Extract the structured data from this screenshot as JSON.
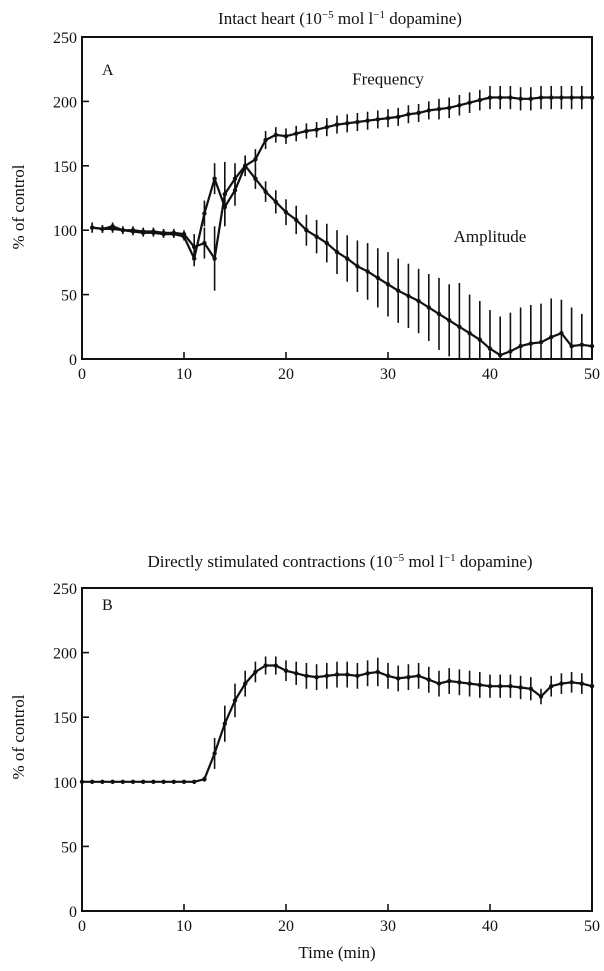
{
  "chart_data": [
    {
      "type": "line",
      "panel": "A",
      "title_main": "Intact heart (10",
      "title_sup1": "−5",
      "title_mid": " mol l",
      "title_sup2": "−1",
      "title_end": " dopamine)",
      "xlabel": "",
      "ylabel": "% of control",
      "xlim": [
        0,
        50
      ],
      "ylim": [
        0,
        250
      ],
      "xticks": [
        0,
        10,
        20,
        30,
        40,
        50
      ],
      "yticks": [
        0,
        50,
        100,
        150,
        200,
        250
      ],
      "annotations": [
        {
          "text": "Frequency",
          "x": 30,
          "y": 213
        },
        {
          "text": "Amplitude",
          "x": 40,
          "y": 91
        }
      ],
      "series": [
        {
          "name": "Frequency",
          "x": [
            1,
            2,
            3,
            4,
            5,
            6,
            7,
            8,
            9,
            10,
            11,
            12,
            13,
            14,
            15,
            16,
            17,
            18,
            19,
            20,
            21,
            22,
            23,
            24,
            25,
            26,
            27,
            28,
            29,
            30,
            31,
            32,
            33,
            34,
            35,
            36,
            37,
            38,
            39,
            40,
            41,
            42,
            43,
            44,
            45,
            46,
            47,
            48,
            49,
            50
          ],
          "y": [
            102,
            101,
            101,
            100,
            99,
            98,
            98,
            97,
            97,
            95,
            78,
            113,
            140,
            118,
            131,
            150,
            155,
            170,
            174,
            173,
            175,
            177,
            178,
            180,
            182,
            183,
            184,
            185,
            186,
            187,
            188,
            190,
            191,
            193,
            194,
            195,
            197,
            199,
            201,
            203,
            203,
            203,
            202,
            202,
            203,
            203,
            203,
            203,
            203,
            203
          ],
          "err": [
            4,
            3,
            3,
            3,
            3,
            3,
            3,
            3,
            3,
            3,
            6,
            10,
            12,
            14,
            12,
            8,
            8,
            7,
            6,
            6,
            6,
            6,
            6,
            7,
            7,
            7,
            7,
            7,
            7,
            7,
            7,
            7,
            7,
            7,
            8,
            8,
            8,
            8,
            8,
            9,
            9,
            9,
            9,
            9,
            9,
            9,
            9,
            9,
            9,
            9
          ]
        },
        {
          "name": "Amplitude",
          "x": [
            1,
            2,
            3,
            4,
            5,
            6,
            7,
            8,
            9,
            10,
            11,
            12,
            13,
            14,
            15,
            16,
            17,
            18,
            19,
            20,
            21,
            22,
            23,
            24,
            25,
            26,
            27,
            28,
            29,
            30,
            31,
            32,
            33,
            34,
            35,
            36,
            37,
            38,
            39,
            40,
            41,
            42,
            43,
            44,
            45,
            46,
            47,
            48,
            49,
            50
          ],
          "y": [
            102,
            101,
            103,
            100,
            100,
            99,
            99,
            98,
            98,
            97,
            87,
            90,
            78,
            128,
            140,
            150,
            140,
            130,
            122,
            114,
            108,
            100,
            95,
            90,
            83,
            78,
            72,
            68,
            63,
            58,
            53,
            49,
            45,
            40,
            35,
            30,
            25,
            20,
            15,
            8,
            3,
            6,
            10,
            12,
            13,
            17,
            20,
            10,
            11,
            10
          ],
          "err": [
            3,
            3,
            3,
            3,
            3,
            3,
            3,
            3,
            3,
            3,
            10,
            12,
            25,
            25,
            12,
            8,
            8,
            8,
            9,
            10,
            11,
            12,
            13,
            15,
            17,
            18,
            20,
            22,
            23,
            25,
            25,
            25,
            25,
            26,
            28,
            28,
            34,
            30,
            30,
            30,
            30,
            30,
            30,
            30,
            30,
            30,
            26,
            30,
            24,
            26
          ]
        }
      ]
    },
    {
      "type": "line",
      "panel": "B",
      "title_main": "Directly stimulated contractions (10",
      "title_sup1": "−5",
      "title_mid": " mol l",
      "title_sup2": "−1",
      "title_end": " dopamine)",
      "xlabel": "Time (min)",
      "ylabel": "% of control",
      "xlim": [
        0,
        50
      ],
      "ylim": [
        0,
        250
      ],
      "xticks": [
        0,
        10,
        20,
        30,
        40,
        50
      ],
      "yticks": [
        0,
        50,
        100,
        150,
        200,
        250
      ],
      "series": [
        {
          "name": "",
          "x": [
            0,
            1,
            2,
            3,
            4,
            5,
            6,
            7,
            8,
            9,
            10,
            11,
            12,
            13,
            14,
            15,
            16,
            17,
            18,
            19,
            20,
            21,
            22,
            23,
            24,
            25,
            26,
            27,
            28,
            29,
            30,
            31,
            32,
            33,
            34,
            35,
            36,
            37,
            38,
            39,
            40,
            41,
            42,
            43,
            44,
            45,
            46,
            47,
            48,
            49,
            50
          ],
          "y": [
            100,
            100,
            100,
            100,
            100,
            100,
            100,
            100,
            100,
            100,
            100,
            100,
            102,
            122,
            145,
            163,
            176,
            185,
            190,
            190,
            186,
            184,
            182,
            181,
            182,
            183,
            183,
            182,
            184,
            185,
            182,
            180,
            181,
            182,
            179,
            176,
            178,
            177,
            176,
            175,
            174,
            174,
            174,
            173,
            172,
            166,
            174,
            176,
            177,
            176,
            174
          ],
          "err": [
            1,
            1,
            1,
            1,
            1,
            1,
            1,
            1,
            1,
            1,
            1,
            1,
            2,
            12,
            14,
            13,
            10,
            8,
            7,
            7,
            8,
            9,
            10,
            10,
            10,
            10,
            10,
            10,
            10,
            11,
            10,
            10,
            10,
            10,
            10,
            10,
            10,
            10,
            10,
            10,
            9,
            9,
            9,
            9,
            9,
            6,
            8,
            8,
            8,
            8,
            8
          ]
        }
      ]
    }
  ]
}
